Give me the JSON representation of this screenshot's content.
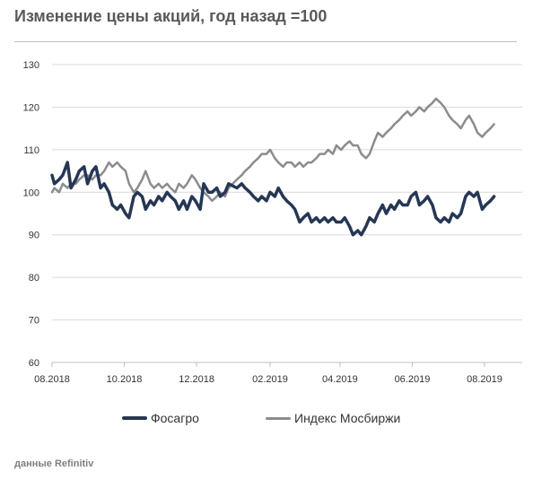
{
  "chart_data": {
    "type": "line",
    "title": "Изменение цены акций, год назад =100",
    "source": "данные Refinitiv",
    "xlabel": "",
    "ylabel": "",
    "x_ticks": [
      "08.2018",
      "10.2018",
      "12.2018",
      "02.2019",
      "04.2019",
      "06.2019",
      "08.2019"
    ],
    "x_range": [
      "2018-08-01",
      "2019-08-01"
    ],
    "ylim": [
      60,
      130
    ],
    "y_ticks": [
      60,
      70,
      80,
      90,
      100,
      110,
      120,
      130
    ],
    "grid": "horizontal",
    "legend_position": "bottom",
    "colors": {
      "phosagro": "#263754",
      "moex": "#8c8c8c"
    },
    "series": [
      {
        "name": "Фосагро",
        "key": "phosagro",
        "points": [
          [
            "2018-08-01",
            104
          ],
          [
            "2018-08-03",
            102
          ],
          [
            "2018-08-07",
            103
          ],
          [
            "2018-08-10",
            104
          ],
          [
            "2018-08-14",
            107
          ],
          [
            "2018-08-17",
            101
          ],
          [
            "2018-08-21",
            103
          ],
          [
            "2018-08-24",
            105
          ],
          [
            "2018-08-28",
            106
          ],
          [
            "2018-08-31",
            102
          ],
          [
            "2018-09-04",
            105
          ],
          [
            "2018-09-07",
            106
          ],
          [
            "2018-09-11",
            101
          ],
          [
            "2018-09-14",
            102
          ],
          [
            "2018-09-18",
            100
          ],
          [
            "2018-09-21",
            97
          ],
          [
            "2018-09-25",
            96
          ],
          [
            "2018-09-28",
            97
          ],
          [
            "2018-10-02",
            95
          ],
          [
            "2018-10-05",
            94
          ],
          [
            "2018-10-09",
            99
          ],
          [
            "2018-10-12",
            100
          ],
          [
            "2018-10-16",
            99
          ],
          [
            "2018-10-19",
            96
          ],
          [
            "2018-10-23",
            98
          ],
          [
            "2018-10-26",
            97
          ],
          [
            "2018-10-30",
            99
          ],
          [
            "2018-11-02",
            98
          ],
          [
            "2018-11-06",
            100
          ],
          [
            "2018-11-09",
            99
          ],
          [
            "2018-11-13",
            98
          ],
          [
            "2018-11-16",
            96
          ],
          [
            "2018-11-20",
            98
          ],
          [
            "2018-11-23",
            96
          ],
          [
            "2018-11-27",
            99
          ],
          [
            "2018-11-30",
            98
          ],
          [
            "2018-12-04",
            96
          ],
          [
            "2018-12-07",
            102
          ],
          [
            "2018-12-11",
            100
          ],
          [
            "2018-12-14",
            100
          ],
          [
            "2018-12-18",
            101
          ],
          [
            "2018-12-21",
            99
          ],
          [
            "2018-12-25",
            100
          ],
          [
            "2018-12-28",
            102
          ],
          [
            "2019-01-04",
            101
          ],
          [
            "2019-01-08",
            102
          ],
          [
            "2019-01-11",
            101
          ],
          [
            "2019-01-15",
            100
          ],
          [
            "2019-01-18",
            99
          ],
          [
            "2019-01-22",
            98
          ],
          [
            "2019-01-25",
            99
          ],
          [
            "2019-01-29",
            98
          ],
          [
            "2019-02-01",
            100
          ],
          [
            "2019-02-05",
            99
          ],
          [
            "2019-02-08",
            101
          ],
          [
            "2019-02-12",
            99
          ],
          [
            "2019-02-15",
            98
          ],
          [
            "2019-02-19",
            97
          ],
          [
            "2019-02-22",
            96
          ],
          [
            "2019-02-26",
            93
          ],
          [
            "2019-03-01",
            94
          ],
          [
            "2019-03-05",
            95
          ],
          [
            "2019-03-08",
            93
          ],
          [
            "2019-03-12",
            94
          ],
          [
            "2019-03-15",
            93
          ],
          [
            "2019-03-19",
            94
          ],
          [
            "2019-03-22",
            93
          ],
          [
            "2019-03-26",
            94
          ],
          [
            "2019-03-29",
            93
          ],
          [
            "2019-04-02",
            93
          ],
          [
            "2019-04-05",
            94
          ],
          [
            "2019-04-09",
            92
          ],
          [
            "2019-04-12",
            90
          ],
          [
            "2019-04-16",
            91
          ],
          [
            "2019-04-19",
            90
          ],
          [
            "2019-04-23",
            92
          ],
          [
            "2019-04-26",
            94
          ],
          [
            "2019-04-30",
            93
          ],
          [
            "2019-05-03",
            95
          ],
          [
            "2019-05-07",
            97
          ],
          [
            "2019-05-10",
            95
          ],
          [
            "2019-05-14",
            97
          ],
          [
            "2019-05-17",
            96
          ],
          [
            "2019-05-21",
            98
          ],
          [
            "2019-05-24",
            97
          ],
          [
            "2019-05-28",
            97
          ],
          [
            "2019-05-31",
            99
          ],
          [
            "2019-06-04",
            100
          ],
          [
            "2019-06-07",
            97
          ],
          [
            "2019-06-11",
            98
          ],
          [
            "2019-06-14",
            99
          ],
          [
            "2019-06-18",
            97
          ],
          [
            "2019-06-21",
            94
          ],
          [
            "2019-06-25",
            93
          ],
          [
            "2019-06-28",
            94
          ],
          [
            "2019-07-02",
            93
          ],
          [
            "2019-07-05",
            95
          ],
          [
            "2019-07-09",
            94
          ],
          [
            "2019-07-12",
            95
          ],
          [
            "2019-07-16",
            99
          ],
          [
            "2019-07-19",
            100
          ],
          [
            "2019-07-23",
            99
          ],
          [
            "2019-07-26",
            100
          ],
          [
            "2019-07-30",
            96
          ],
          [
            "2019-08-02",
            97
          ],
          [
            "2019-08-06",
            98
          ],
          [
            "2019-08-09",
            99
          ]
        ]
      },
      {
        "name": "Индекс Мосбиржи",
        "key": "moex",
        "points": [
          [
            "2018-08-01",
            100
          ],
          [
            "2018-08-03",
            101
          ],
          [
            "2018-08-07",
            100
          ],
          [
            "2018-08-10",
            102
          ],
          [
            "2018-08-14",
            101
          ],
          [
            "2018-08-17",
            102
          ],
          [
            "2018-08-21",
            102
          ],
          [
            "2018-08-24",
            103
          ],
          [
            "2018-08-28",
            104
          ],
          [
            "2018-08-31",
            104
          ],
          [
            "2018-09-04",
            103
          ],
          [
            "2018-09-07",
            104
          ],
          [
            "2018-09-11",
            104
          ],
          [
            "2018-09-14",
            105
          ],
          [
            "2018-09-18",
            107
          ],
          [
            "2018-09-21",
            106
          ],
          [
            "2018-09-25",
            107
          ],
          [
            "2018-09-28",
            106
          ],
          [
            "2018-10-02",
            105
          ],
          [
            "2018-10-05",
            102
          ],
          [
            "2018-10-09",
            100
          ],
          [
            "2018-10-12",
            101
          ],
          [
            "2018-10-16",
            103
          ],
          [
            "2018-10-19",
            105
          ],
          [
            "2018-10-23",
            102
          ],
          [
            "2018-10-26",
            101
          ],
          [
            "2018-10-30",
            102
          ],
          [
            "2018-11-02",
            101
          ],
          [
            "2018-11-06",
            102
          ],
          [
            "2018-11-09",
            101
          ],
          [
            "2018-11-13",
            100
          ],
          [
            "2018-11-16",
            102
          ],
          [
            "2018-11-20",
            101
          ],
          [
            "2018-11-23",
            102
          ],
          [
            "2018-11-27",
            104
          ],
          [
            "2018-11-30",
            103
          ],
          [
            "2018-12-04",
            101
          ],
          [
            "2018-12-07",
            100
          ],
          [
            "2018-12-11",
            99
          ],
          [
            "2018-12-14",
            98
          ],
          [
            "2018-12-18",
            99
          ],
          [
            "2018-12-21",
            100
          ],
          [
            "2018-12-25",
            99
          ],
          [
            "2018-12-28",
            101
          ],
          [
            "2019-01-04",
            103
          ],
          [
            "2019-01-08",
            104
          ],
          [
            "2019-01-11",
            105
          ],
          [
            "2019-01-15",
            106
          ],
          [
            "2019-01-18",
            107
          ],
          [
            "2019-01-22",
            108
          ],
          [
            "2019-01-25",
            109
          ],
          [
            "2019-01-29",
            109
          ],
          [
            "2019-02-01",
            110
          ],
          [
            "2019-02-05",
            108
          ],
          [
            "2019-02-08",
            107
          ],
          [
            "2019-02-12",
            106
          ],
          [
            "2019-02-15",
            107
          ],
          [
            "2019-02-19",
            107
          ],
          [
            "2019-02-22",
            106
          ],
          [
            "2019-02-26",
            107
          ],
          [
            "2019-03-01",
            106
          ],
          [
            "2019-03-05",
            107
          ],
          [
            "2019-03-08",
            107
          ],
          [
            "2019-03-12",
            108
          ],
          [
            "2019-03-15",
            109
          ],
          [
            "2019-03-19",
            109
          ],
          [
            "2019-03-22",
            110
          ],
          [
            "2019-03-26",
            109
          ],
          [
            "2019-03-29",
            111
          ],
          [
            "2019-04-02",
            110
          ],
          [
            "2019-04-05",
            111
          ],
          [
            "2019-04-09",
            112
          ],
          [
            "2019-04-12",
            111
          ],
          [
            "2019-04-16",
            111
          ],
          [
            "2019-04-19",
            109
          ],
          [
            "2019-04-23",
            108
          ],
          [
            "2019-04-26",
            109
          ],
          [
            "2019-04-30",
            112
          ],
          [
            "2019-05-03",
            114
          ],
          [
            "2019-05-07",
            113
          ],
          [
            "2019-05-10",
            114
          ],
          [
            "2019-05-14",
            115
          ],
          [
            "2019-05-17",
            116
          ],
          [
            "2019-05-21",
            117
          ],
          [
            "2019-05-24",
            118
          ],
          [
            "2019-05-28",
            119
          ],
          [
            "2019-05-31",
            118
          ],
          [
            "2019-06-04",
            119
          ],
          [
            "2019-06-07",
            120
          ],
          [
            "2019-06-11",
            119
          ],
          [
            "2019-06-14",
            120
          ],
          [
            "2019-06-18",
            121
          ],
          [
            "2019-06-21",
            122
          ],
          [
            "2019-06-25",
            121
          ],
          [
            "2019-06-28",
            120
          ],
          [
            "2019-07-02",
            118
          ],
          [
            "2019-07-05",
            117
          ],
          [
            "2019-07-09",
            116
          ],
          [
            "2019-07-12",
            115
          ],
          [
            "2019-07-16",
            117
          ],
          [
            "2019-07-19",
            118
          ],
          [
            "2019-07-23",
            116
          ],
          [
            "2019-07-26",
            114
          ],
          [
            "2019-07-30",
            113
          ],
          [
            "2019-08-02",
            114
          ],
          [
            "2019-08-06",
            115
          ],
          [
            "2019-08-09",
            116
          ]
        ]
      }
    ]
  }
}
